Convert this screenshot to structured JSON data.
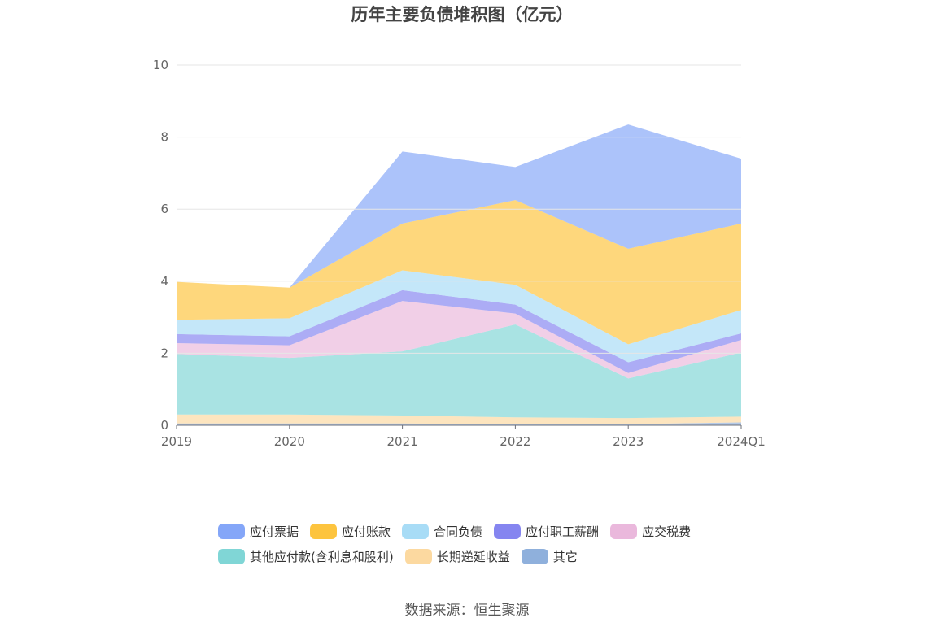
{
  "chart_data": {
    "type": "area",
    "stacked": true,
    "title": "历年主要负债堆积图（亿元）",
    "categories": [
      "2019",
      "2020",
      "2021",
      "2022",
      "2023",
      "2024Q1"
    ],
    "ylim": [
      0,
      10
    ],
    "yticks": [
      0,
      2,
      4,
      6,
      8,
      10
    ],
    "grid": true,
    "legend_position": "bottom",
    "series": [
      {
        "name": "其它",
        "color": "#8fb0dc",
        "values": [
          0.05,
          0.05,
          0.05,
          0.03,
          0.03,
          0.08
        ]
      },
      {
        "name": "长期递延收益",
        "color": "#fcd9a0",
        "values": [
          0.25,
          0.25,
          0.22,
          0.19,
          0.17,
          0.16
        ]
      },
      {
        "name": "其他应付款(含利息和股利)",
        "color": "#80d6d6",
        "values": [
          1.68,
          1.57,
          1.78,
          2.58,
          1.1,
          1.78
        ]
      },
      {
        "name": "应交税费",
        "color": "#eab8dc",
        "values": [
          0.3,
          0.35,
          1.4,
          0.3,
          0.15,
          0.35
        ]
      },
      {
        "name": "应付职工薪酬",
        "color": "#8585f0",
        "values": [
          0.25,
          0.25,
          0.3,
          0.25,
          0.3,
          0.18
        ]
      },
      {
        "name": "合同负债",
        "color": "#a8dcf6",
        "values": [
          0.4,
          0.5,
          0.55,
          0.55,
          0.5,
          0.65
        ]
      },
      {
        "name": "应付账款",
        "color": "#fdc43e",
        "values": [
          1.05,
          0.85,
          1.3,
          2.35,
          2.65,
          2.4
        ]
      },
      {
        "name": "应付票据",
        "color": "#84a6f8",
        "values": [
          0.0,
          0.0,
          2.0,
          0.92,
          3.45,
          1.8
        ]
      }
    ]
  },
  "legend": [
    {
      "label": "应付票据",
      "color": "#84a6f8"
    },
    {
      "label": "应付账款",
      "color": "#fdc43e"
    },
    {
      "label": "合同负债",
      "color": "#a8dcf6"
    },
    {
      "label": "应付职工薪酬",
      "color": "#8585f0"
    },
    {
      "label": "应交税费",
      "color": "#eab8dc"
    },
    {
      "label": "其他应付款(含利息和股利)",
      "color": "#80d6d6"
    },
    {
      "label": "长期递延收益",
      "color": "#fcd9a0"
    },
    {
      "label": "其它",
      "color": "#8fb0dc"
    }
  ],
  "source": "数据来源：恒生聚源"
}
